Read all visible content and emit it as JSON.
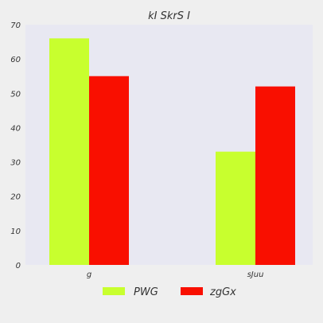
{
  "chart_data": {
    "type": "bar",
    "title": "kI SkrS I",
    "xlabel": "",
    "ylabel": "",
    "categories": [
      "g",
      "sJuu"
    ],
    "series": [
      {
        "name": "PWG",
        "values": [
          66,
          33
        ]
      },
      {
        "name": "zgGx",
        "values": [
          55,
          52
        ]
      }
    ],
    "ylim": [
      0,
      70
    ],
    "yticks": [
      0,
      10,
      20,
      30,
      40,
      50,
      60,
      70
    ],
    "grid": false,
    "legend_position": "bottom"
  },
  "colors": {
    "series": [
      "#c8ff2e",
      "#f90f00"
    ],
    "plot_background": "#e8e8f2",
    "page_background": "#efefef"
  }
}
